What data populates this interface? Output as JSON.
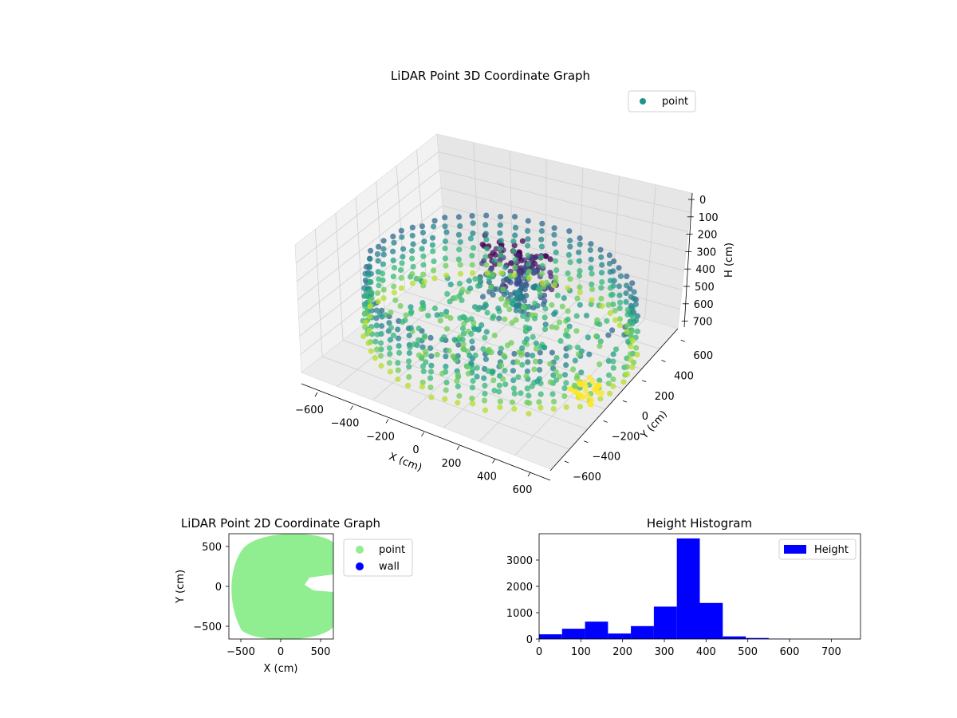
{
  "chart_data": [
    {
      "type": "scatter",
      "title": "LiDAR Point 3D Coordinate Graph",
      "xlabel": "X (cm)",
      "ylabel": "Y (cm)",
      "zlabel": "H (cm)",
      "xlim": [
        -650,
        650
      ],
      "ylim": [
        -650,
        650
      ],
      "zlim": [
        0,
        750
      ],
      "z_inverted": true,
      "x_ticks": [
        "−600",
        "−400",
        "−200",
        "0",
        "200",
        "400",
        "600"
      ],
      "y_ticks": [
        "−600",
        "−400",
        "−200",
        "0",
        "200",
        "400",
        "600"
      ],
      "z_ticks": [
        "0",
        "100",
        "200",
        "300",
        "400",
        "500",
        "600",
        "700"
      ],
      "legend": [
        "point"
      ],
      "legend_position": "top-right",
      "colormap": "viridis",
      "grid": true
    },
    {
      "type": "scatter",
      "title": "LiDAR Point 2D Coordinate Graph",
      "xlabel": "X (cm)",
      "ylabel": "Y (cm)",
      "xlim": [
        -650,
        650
      ],
      "ylim": [
        -650,
        650
      ],
      "x_ticks": [
        "−500",
        "0",
        "500"
      ],
      "y_ticks": [
        "500",
        "0",
        "−500"
      ],
      "series": [
        {
          "name": "point",
          "color": "#90ee90"
        },
        {
          "name": "wall",
          "color": "#0000ff"
        }
      ],
      "legend_position": "outside-right"
    },
    {
      "type": "bar",
      "title": "Height Histogram",
      "xlabel": "",
      "ylabel": "",
      "xlim": [
        0,
        770
      ],
      "ylim": [
        0,
        4000
      ],
      "x_ticks": [
        "0",
        "100",
        "200",
        "300",
        "400",
        "500",
        "600",
        "700"
      ],
      "y_ticks": [
        "0",
        "1000",
        "2000",
        "3000"
      ],
      "bin_edges": [
        0,
        55,
        110,
        165,
        220,
        275,
        330,
        385,
        440,
        495,
        550,
        605,
        660,
        715,
        770
      ],
      "values": [
        180,
        390,
        660,
        210,
        490,
        1230,
        3820,
        1370,
        100,
        40,
        12,
        6,
        4,
        3
      ],
      "series": [
        {
          "name": "Height",
          "color": "#0000ff"
        }
      ],
      "legend_position": "top-right"
    }
  ]
}
